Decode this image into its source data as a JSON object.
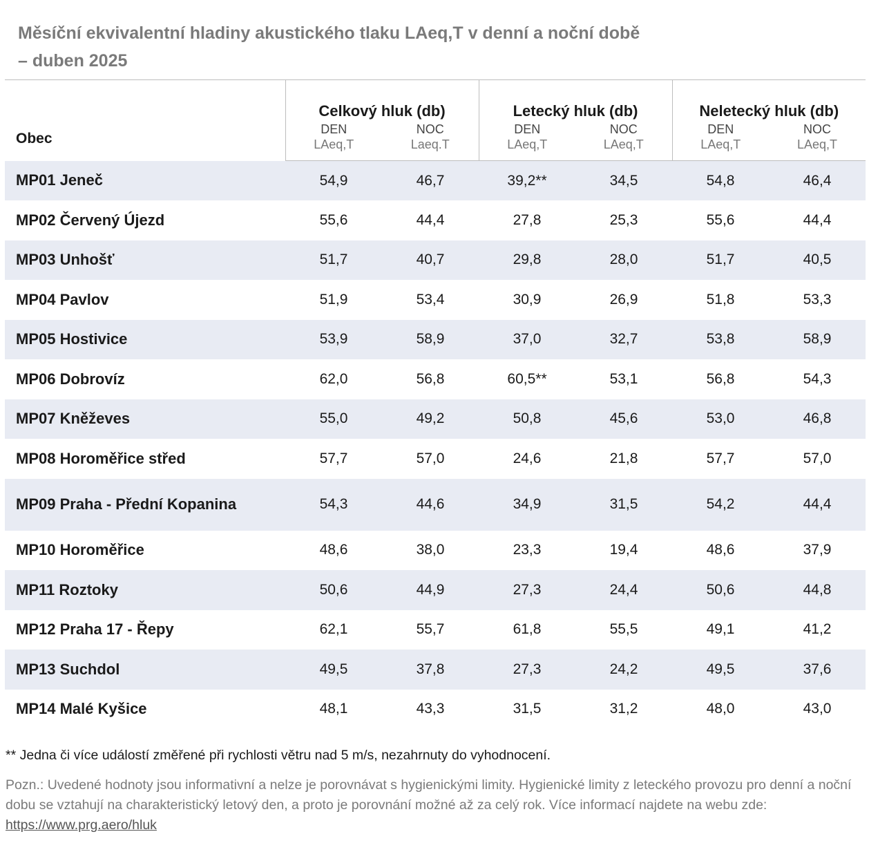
{
  "title": {
    "line1": "Měsíční ekvivalentní hladiny akustického tlaku LAeq,T v denní a noční době",
    "line2": "– duben 2025"
  },
  "table": {
    "obec_header": "Obec",
    "groups": [
      "Celkový hluk (db)",
      "Letecký hluk (db)",
      "Neletecký hluk (db)"
    ],
    "subheaders": [
      {
        "top": "DEN",
        "bottom": "LAeq,T"
      },
      {
        "top": "NOC",
        "bottom": "Laeq.T"
      },
      {
        "top": "DEN",
        "bottom": "LAeq,T"
      },
      {
        "top": "NOC",
        "bottom": "LAeq,T"
      },
      {
        "top": "DEN",
        "bottom": "LAeq,T"
      },
      {
        "top": "NOC",
        "bottom": "LAeq,T"
      }
    ],
    "rows": [
      {
        "name": "MP01 Jeneč",
        "values": [
          "54,9",
          "46,7",
          "39,2**",
          "34,5",
          "54,8",
          "46,4"
        ]
      },
      {
        "name": "MP02 Červený Újezd",
        "values": [
          "55,6",
          "44,4",
          "27,8",
          "25,3",
          "55,6",
          "44,4"
        ]
      },
      {
        "name": "MP03 Unhošť",
        "values": [
          "51,7",
          "40,7",
          "29,8",
          "28,0",
          "51,7",
          "40,5"
        ]
      },
      {
        "name": "MP04 Pavlov",
        "values": [
          "51,9",
          "53,4",
          "30,9",
          "26,9",
          "51,8",
          "53,3"
        ]
      },
      {
        "name": "MP05 Hostivice",
        "values": [
          "53,9",
          "58,9",
          "37,0",
          "32,7",
          "53,8",
          "58,9"
        ]
      },
      {
        "name": "MP06 Dobrovíz",
        "values": [
          "62,0",
          "56,8",
          "60,5**",
          "53,1",
          "56,8",
          "54,3"
        ]
      },
      {
        "name": "MP07 Kněževes",
        "values": [
          "55,0",
          "49,2",
          "50,8",
          "45,6",
          "53,0",
          "46,8"
        ]
      },
      {
        "name": "MP08 Horoměřice střed",
        "values": [
          "57,7",
          "57,0",
          "24,6",
          "21,8",
          "57,7",
          "57,0"
        ]
      },
      {
        "name": "MP09 Praha - Přední Kopanina",
        "values": [
          "54,3",
          "44,6",
          "34,9",
          "31,5",
          "54,2",
          "44,4"
        ]
      },
      {
        "name": "MP10 Horoměřice",
        "values": [
          "48,6",
          "38,0",
          "23,3",
          "19,4",
          "48,6",
          "37,9"
        ]
      },
      {
        "name": "MP11 Roztoky",
        "values": [
          "50,6",
          "44,9",
          "27,3",
          "24,4",
          "50,6",
          "44,8"
        ]
      },
      {
        "name": "MP12 Praha 17 - Řepy",
        "values": [
          "62,1",
          "55,7",
          "61,8",
          "55,5",
          "49,1",
          "41,2"
        ]
      },
      {
        "name": "MP13 Suchdol",
        "values": [
          "49,5",
          "37,8",
          "27,3",
          "24,2",
          "49,5",
          "37,6"
        ]
      },
      {
        "name": "MP14 Malé Kyšice",
        "values": [
          "48,1",
          "43,3",
          "31,5",
          "31,2",
          "48,0",
          "43,0"
        ]
      }
    ]
  },
  "footnote": "**  Jedna či více událostí změřené při rychlosti větru nad 5 m/s, nezahrnuty do vyhodnocení.",
  "note": {
    "text": "Pozn.: Uvedené hodnoty jsou informativní a nelze je porovnávat s hygienickými limity. Hygienické limity z leteckého provozu pro denní a noční dobu se vztahují na charakteristický letový den, a proto je porovnání možné až za celý rok. Více informací najdete na webu zde: ",
    "link_text": "https://www.prg.aero/hluk"
  },
  "colors": {
    "title": "#7a7a7a",
    "stripe": "#e8ebf3",
    "rule": "#bdbdbd"
  }
}
